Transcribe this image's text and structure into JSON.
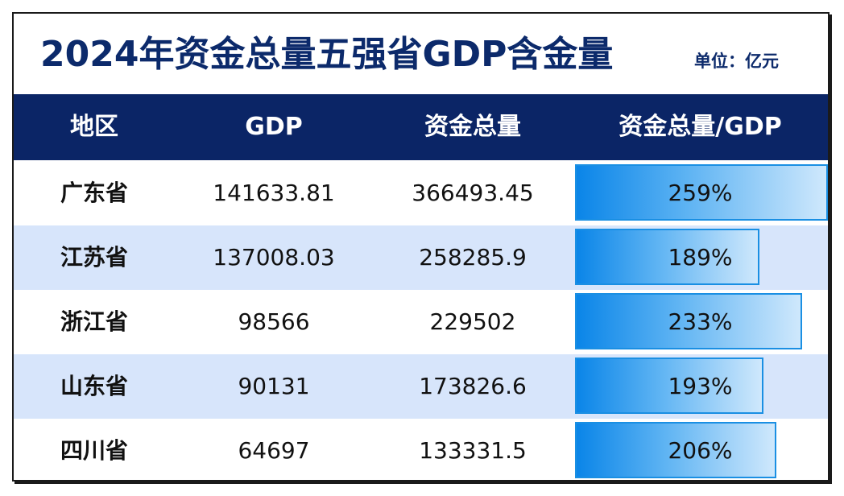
{
  "title": "2024年资金总量五强省GDP含金量",
  "unit": "单位：亿元",
  "headers": [
    "地区",
    "GDP",
    "资金总量",
    "资金总量/GDP"
  ],
  "rows": [
    {
      "region": "广东省",
      "gdp": "141633.81",
      "funds": "366493.45",
      "ratio": "259%"
    },
    {
      "region": "江苏省",
      "gdp": "137008.03",
      "funds": "258285.9",
      "ratio": "189%"
    },
    {
      "region": "浙江省",
      "gdp": "98566",
      "funds": "229502",
      "ratio": "233%"
    },
    {
      "region": "山东省",
      "gdp": "90131",
      "funds": "173826.6",
      "ratio": "193%"
    },
    {
      "region": "四川省",
      "gdp": "64697",
      "funds": "133331.5",
      "ratio": "206%"
    }
  ],
  "chart_data": {
    "type": "table",
    "title": "2024年资金总量五强省GDP含金量",
    "subtitle": "单位：亿元",
    "columns": [
      "地区",
      "GDP",
      "资金总量",
      "资金总量/GDP"
    ],
    "categories": [
      "广东省",
      "江苏省",
      "浙江省",
      "山东省",
      "四川省"
    ],
    "series": [
      {
        "name": "GDP",
        "values": [
          141633.81,
          137008.03,
          98566,
          90131,
          64697
        ]
      },
      {
        "name": "资金总量",
        "values": [
          366493.45,
          258285.9,
          229502,
          173826.6,
          133331.5
        ]
      },
      {
        "name": "资金总量/GDP",
        "values": [
          259,
          189,
          233,
          193,
          206
        ]
      }
    ],
    "bar_column": "资金总量/GDP",
    "bar_max": 259
  },
  "colors": {
    "header_bg": "#0b2566",
    "title": "#0c2a6b",
    "alt_row": "#d7e5fb",
    "bar_start": "#0a85e8",
    "bar_end": "#cfe8fc",
    "bar_border": "#1a8fe3"
  }
}
